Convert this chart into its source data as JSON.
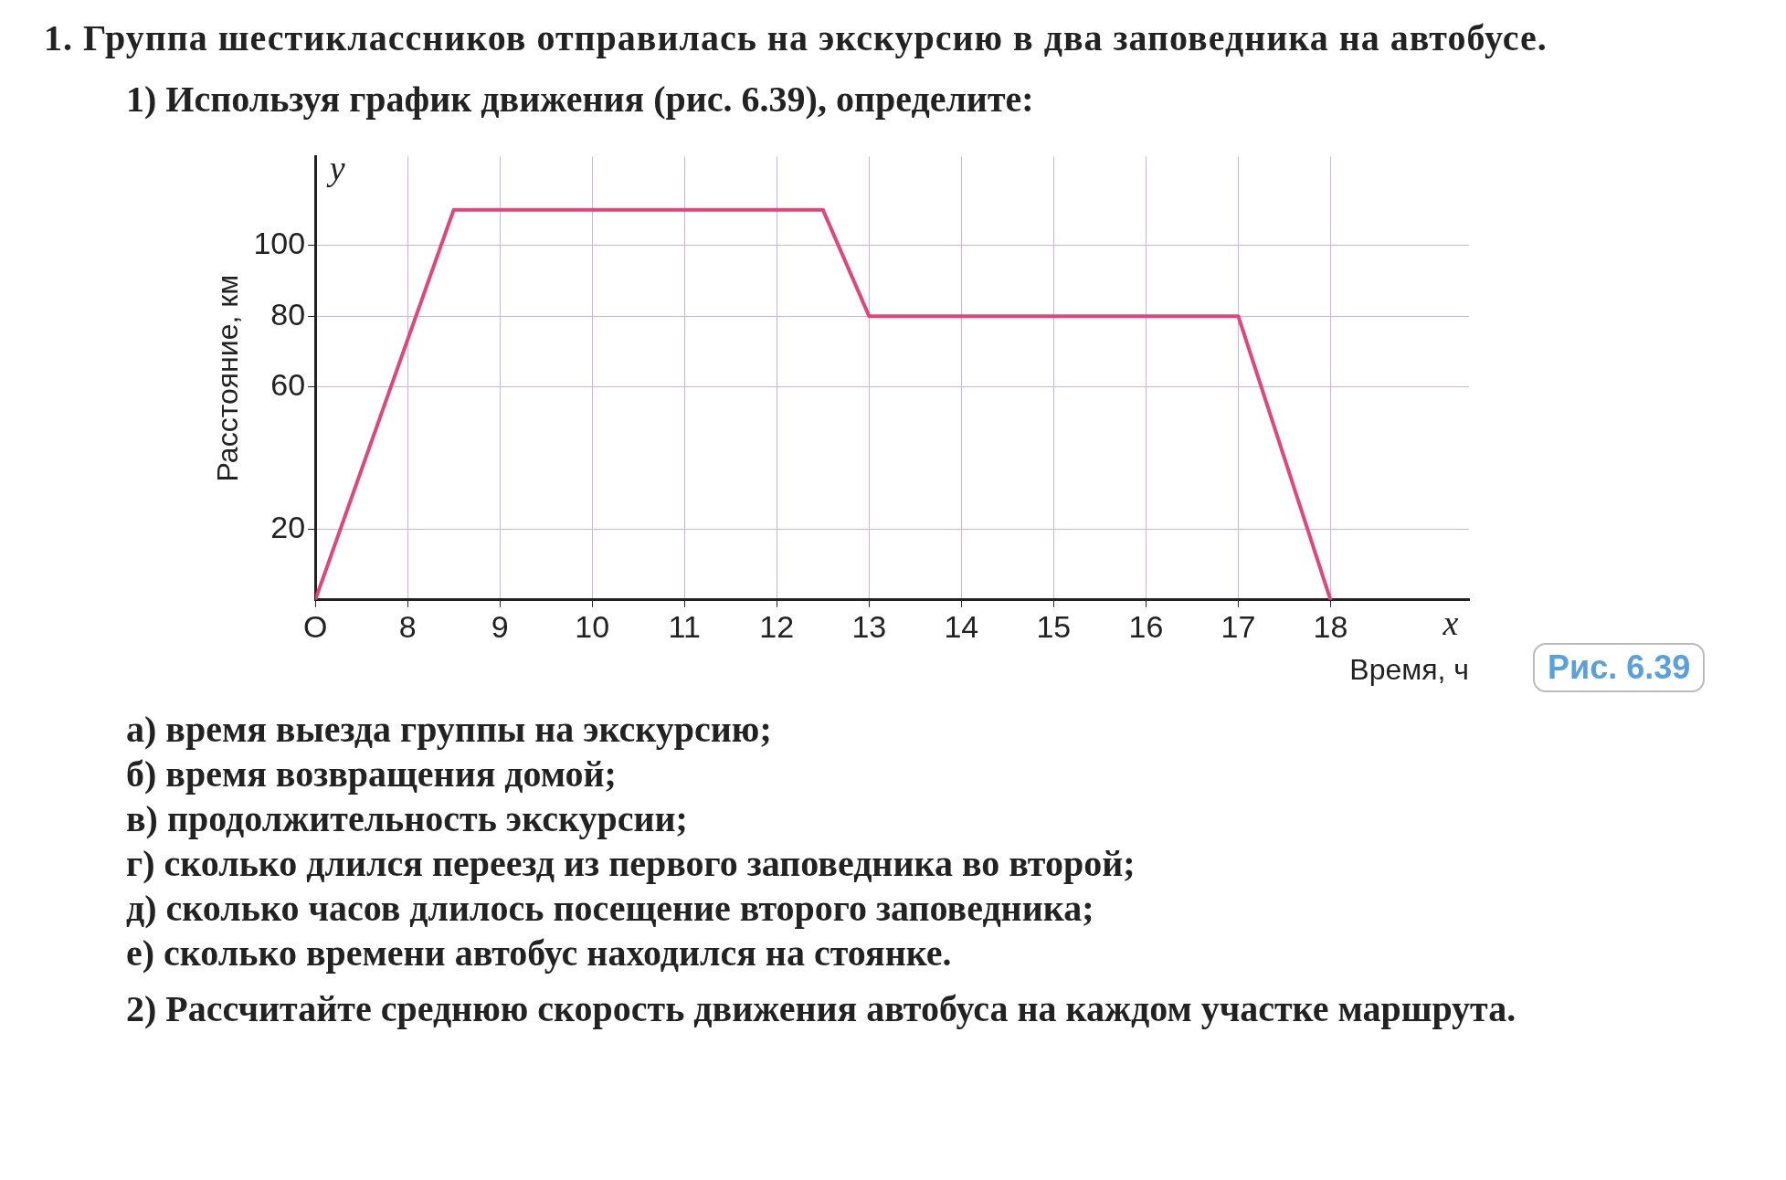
{
  "chart_data": {
    "type": "line",
    "title": "1. Группа шестиклассников отправилась на экскурсию в два заповедника на автобусе.",
    "subtitle": "1) Используя график движения (рис. 6.39), определите:",
    "xlabel": "Время, ч",
    "ylabel": "Расстояние, км",
    "x": [
      7,
      8.5,
      12.5,
      13,
      17,
      18
    ],
    "series": [
      {
        "color": "#e0457b",
        "values": [
          0,
          110,
          110,
          80,
          80,
          0
        ]
      }
    ],
    "xlim": [
      7,
      19.5
    ],
    "xticks": [
      {
        "value": 7,
        "label": "O"
      },
      8,
      9,
      10,
      11,
      12,
      13,
      14,
      15,
      16,
      17,
      18
    ],
    "ylim": [
      0,
      125
    ],
    "yticks": [
      20,
      60,
      80,
      100
    ],
    "grid": true,
    "legend": false,
    "marker": "none",
    "line_style": "solid",
    "annotations": [
      "x",
      "y",
      "Рис. 6.39",
      "а) время выезда группы на экскурсию;",
      "б) время возвращения домой;",
      "в) продолжительность экскурсии;",
      "г) сколько длился переезд из первого заповедника во второй;",
      "д) сколько часов длилось посещение второго заповедника;",
      "е) сколько времени автобус находился на стоянке.",
      "2) Рассчитайте среднюю скорость движения автобуса на каждом участке маршрута."
    ]
  }
}
